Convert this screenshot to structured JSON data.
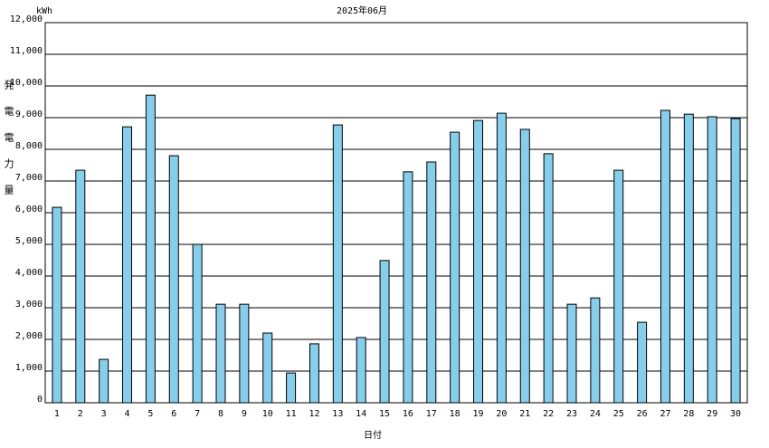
{
  "chart_data": {
    "type": "bar",
    "title": "2025年06月",
    "unit": "kWh",
    "y_label": "発電電力量",
    "x_label": "日付",
    "categories": [
      "1",
      "2",
      "3",
      "4",
      "5",
      "6",
      "7",
      "8",
      "9",
      "10",
      "11",
      "12",
      "13",
      "14",
      "15",
      "16",
      "17",
      "18",
      "19",
      "20",
      "21",
      "22",
      "23",
      "24",
      "25",
      "26",
      "27",
      "28",
      "29",
      "30"
    ],
    "values": [
      6170,
      7340,
      1370,
      8710,
      9710,
      7800,
      5000,
      3110,
      3110,
      2200,
      940,
      1860,
      8770,
      2060,
      4490,
      7290,
      7600,
      8540,
      8910,
      9140,
      8630,
      7860,
      3110,
      3310,
      7340,
      2540,
      9230,
      9110,
      9030,
      8970
    ],
    "color": "#87ceeb",
    "ylim": [
      0,
      12000
    ],
    "yticks": [
      0,
      {
        "value": 1000,
        "label": "1,000"
      },
      {
        "value": 2000,
        "label": "2,000"
      },
      {
        "value": 3000,
        "label": "3,000"
      },
      {
        "value": 4000,
        "label": "4,000"
      },
      {
        "value": 5000,
        "label": "5,000"
      },
      {
        "value": 6000,
        "label": "6,000"
      },
      {
        "value": 7000,
        "label": "7,000"
      },
      {
        "value": 8000,
        "label": "8,000"
      },
      {
        "value": 9000,
        "label": "9,000"
      },
      {
        "value": 10000,
        "label": "10,000"
      },
      {
        "value": 11000,
        "label": "11,000"
      },
      {
        "value": 12000,
        "label": "12,000"
      }
    ],
    "grid": true
  }
}
